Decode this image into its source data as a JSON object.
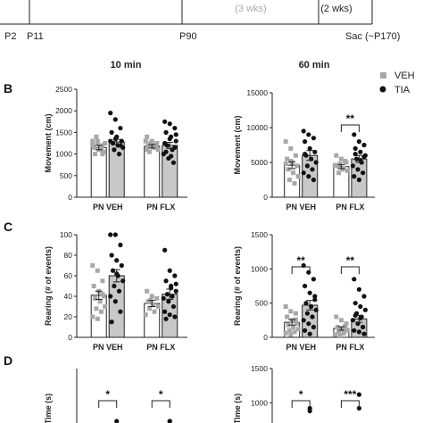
{
  "timeline": {
    "labels": [
      "P2",
      "P11",
      "P90",
      "Sac (~P170)"
    ],
    "phase_labels": [
      "(3 wks)",
      "(2 wks)"
    ]
  },
  "column_titles": [
    "10 min",
    "60 min"
  ],
  "legend": [
    {
      "label": "VEH",
      "marker": "square",
      "color": "#a8a8a8"
    },
    {
      "label": "TIA",
      "marker": "circle",
      "color": "#111111"
    }
  ],
  "panel_letters": [
    "B",
    "C",
    "D"
  ],
  "chart_data": [
    {
      "type": "bar",
      "panel": "B",
      "column": "10 min",
      "ylabel": "Movement (cm)",
      "ylim": [
        0,
        2500
      ],
      "yticks": [
        0,
        500,
        1000,
        1500,
        2000,
        2500
      ],
      "groups": [
        "PN VEH",
        "PN FLX"
      ],
      "series": [
        {
          "name": "VEH",
          "values": [
            1150,
            1180
          ],
          "sem": [
            50,
            40
          ],
          "points": [
            [
              1300,
              1250,
              1200,
              1150,
              1100,
              1050,
              1000,
              1150,
              1250,
              1400,
              1100,
              1200,
              1300,
              1000
            ],
            [
              1400,
              1300,
              1250,
              1200,
              1150,
              1100,
              1050,
              1200,
              1300,
              1250,
              1150,
              1100
            ]
          ]
        },
        {
          "name": "TIA",
          "values": [
            1280,
            1200
          ],
          "sem": [
            60,
            70
          ],
          "points": [
            [
              1950,
              1800,
              1600,
              1500,
              1400,
              1300,
              1250,
              1200,
              1150,
              1100,
              1000,
              1300,
              1350,
              1200
            ],
            [
              1750,
              1700,
              1600,
              1500,
              1400,
              1300,
              1200,
              1100,
              1000,
              900,
              800,
              1250,
              1350,
              1150,
              1050,
              950,
              1450
            ]
          ]
        }
      ],
      "annotations": []
    },
    {
      "type": "bar",
      "panel": "B",
      "column": "60 min",
      "ylabel": "Movement (cm)",
      "ylim": [
        0,
        15000
      ],
      "yticks": [
        0,
        5000,
        10000,
        15000
      ],
      "groups": [
        "PN VEH",
        "PN FLX"
      ],
      "series": [
        {
          "name": "VEH",
          "values": [
            4600,
            4400
          ],
          "sem": [
            500,
            300
          ],
          "points": [
            [
              8000,
              7000,
              6000,
              5500,
              5000,
              4500,
              4000,
              3500,
              3000,
              2500,
              2000,
              4800,
              5200
            ],
            [
              6000,
              5500,
              5000,
              4500,
              4000,
              3800,
              3500,
              4200,
              4600,
              4800,
              5200
            ]
          ]
        },
        {
          "name": "TIA",
          "values": [
            6000,
            5500
          ],
          "sem": [
            700,
            500
          ],
          "points": [
            [
              9500,
              9000,
              8500,
              8000,
              7000,
              6500,
              6000,
              5500,
              5000,
              4500,
              4000,
              3500,
              3000,
              2500,
              6200
            ],
            [
              9000,
              8000,
              7500,
              7000,
              6500,
              6000,
              5500,
              5000,
              4500,
              4000,
              3500,
              3000,
              2500,
              5800,
              6200,
              5300
            ]
          ]
        }
      ],
      "annotations": [
        {
          "group": "PN FLX",
          "text": "**"
        }
      ]
    },
    {
      "type": "bar",
      "panel": "C",
      "column": "10 min",
      "ylabel": "Rearing (# of events)",
      "ylim": [
        0,
        100
      ],
      "yticks": [
        0,
        20,
        40,
        60,
        80,
        100
      ],
      "groups": [
        "PN VEH",
        "PN FLX"
      ],
      "series": [
        {
          "name": "VEH",
          "values": [
            41,
            33
          ],
          "sem": [
            4,
            3
          ],
          "points": [
            [
              70,
              65,
              55,
              50,
              45,
              40,
              38,
              35,
              30,
              28,
              25,
              20,
              18,
              42
            ],
            [
              45,
              40,
              38,
              35,
              32,
              30,
              28,
              25,
              22,
              36
            ]
          ]
        },
        {
          "name": "TIA",
          "values": [
            60,
            42
          ],
          "sem": [
            6,
            5
          ],
          "points": [
            [
              100,
              100,
              90,
              80,
              75,
              70,
              65,
              60,
              55,
              50,
              45,
              40,
              35,
              25,
              15,
              62
            ],
            [
              85,
              65,
              60,
              55,
              50,
              45,
              42,
              40,
              38,
              35,
              30,
              25,
              22,
              20,
              18,
              48,
              52
            ]
          ]
        }
      ],
      "annotations": []
    },
    {
      "type": "bar",
      "panel": "C",
      "column": "60 min",
      "ylabel": "Rearing (# of events)",
      "ylim": [
        0,
        1500
      ],
      "yticks": [
        0,
        500,
        1000,
        1500
      ],
      "groups": [
        "PN VEH",
        "PN FLX"
      ],
      "series": [
        {
          "name": "VEH",
          "values": [
            220,
            130
          ],
          "sem": [
            40,
            25
          ],
          "points": [
            [
              450,
              380,
              350,
              300,
              250,
              200,
              180,
              150,
              120,
              100,
              80,
              60,
              40,
              260
            ],
            [
              300,
              250,
              200,
              150,
              120,
              100,
              80,
              60,
              40,
              20,
              160
            ]
          ]
        },
        {
          "name": "TIA",
          "values": [
            470,
            270
          ],
          "sem": [
            70,
            50
          ],
          "points": [
            [
              1050,
              950,
              850,
              750,
              650,
              550,
              500,
              450,
              400,
              350,
              300,
              250,
              200,
              150,
              100,
              50,
              600
            ],
            [
              850,
              700,
              600,
              500,
              450,
              400,
              350,
              300,
              250,
              200,
              150,
              100,
              80,
              50,
              320,
              280
            ]
          ]
        }
      ],
      "annotations": [
        {
          "group": "PN VEH",
          "text": "**"
        },
        {
          "group": "PN FLX",
          "text": "**"
        }
      ]
    },
    {
      "type": "bar",
      "panel": "D",
      "column": "10 min",
      "ylabel": "Time (s)",
      "annotations": [
        {
          "group": "PN VEH",
          "text": "*"
        },
        {
          "group": "PN FLX",
          "text": "*"
        }
      ],
      "visible_points": [
        {
          "group": "PN VEH",
          "series": "TIA",
          "y_frac": 0.3
        },
        {
          "group": "PN FLX",
          "series": "TIA",
          "y_frac": 0.34
        },
        {
          "group": "PN FLX",
          "series": "TIA",
          "y_frac": 0.14
        }
      ]
    },
    {
      "type": "bar",
      "panel": "D",
      "column": "60 min",
      "ylabel": "Time (s)",
      "ylim": [
        0,
        1500
      ],
      "yticks": [
        1000,
        1500
      ],
      "annotations": [
        {
          "group": "PN VEH",
          "text": "*"
        },
        {
          "group": "PN FLX",
          "text": "***"
        }
      ],
      "visible_points": [
        {
          "group": "PN VEH",
          "series": "TIA",
          "value": 920
        },
        {
          "group": "PN VEH",
          "series": "TIA",
          "value": 880
        },
        {
          "group": "PN FLX",
          "series": "TIA",
          "value": 1120
        },
        {
          "group": "PN FLX",
          "series": "TIA",
          "value": 920
        }
      ]
    }
  ]
}
